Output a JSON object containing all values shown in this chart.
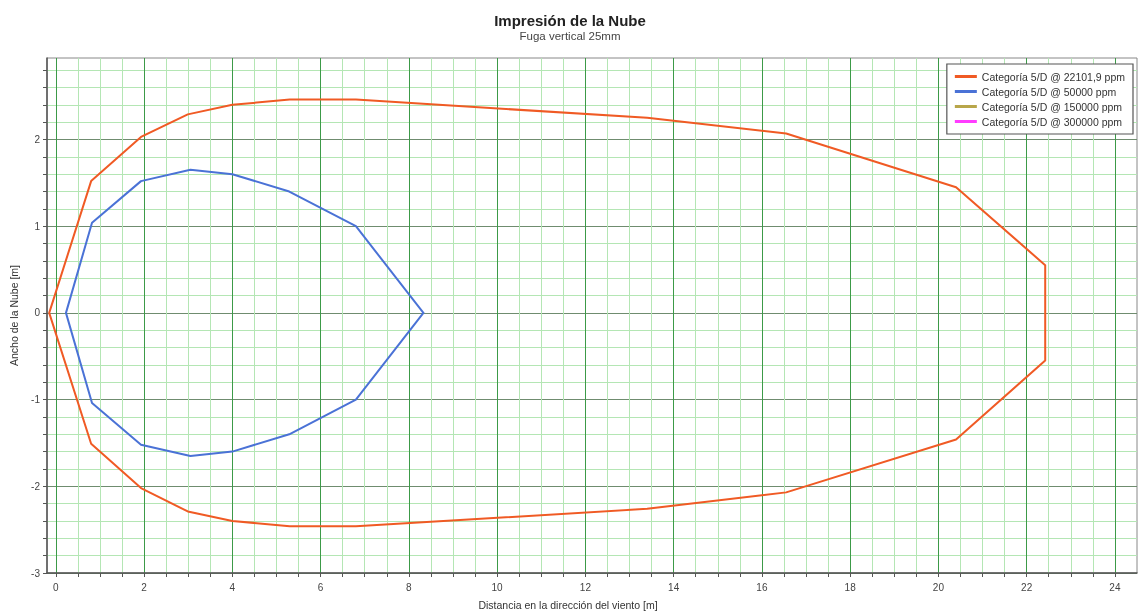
{
  "chart_data": {
    "type": "line",
    "title": "Impresión de la Nube",
    "subtitle": "Fuga vertical 25mm",
    "xlabel": "Distancia en la dirección del viento [m]",
    "ylabel": "Ancho de la Nube [m]",
    "xlim": [
      -0.2,
      24.5
    ],
    "ylim": [
      -3,
      2.94
    ],
    "xticks": [
      0,
      {
        "value": 0.5,
        "label": null
      },
      {
        "value": 1,
        "label": null
      },
      {
        "value": 1.5,
        "label": null
      },
      2,
      {
        "value": 2.5,
        "label": null
      },
      {
        "value": 3,
        "label": null
      },
      {
        "value": 3.5,
        "label": null
      },
      4,
      {
        "value": 4.5,
        "label": null
      },
      {
        "value": 5,
        "label": null
      },
      {
        "value": 5.5,
        "label": null
      },
      6,
      {
        "value": 6.5,
        "label": null
      },
      {
        "value": 7,
        "label": null
      },
      {
        "value": 7.5,
        "label": null
      },
      8,
      {
        "value": 8.5,
        "label": null
      },
      {
        "value": 9,
        "label": null
      },
      {
        "value": 9.5,
        "label": null
      },
      10,
      {
        "value": 10.5,
        "label": null
      },
      {
        "value": 11,
        "label": null
      },
      {
        "value": 11.5,
        "label": null
      },
      12,
      {
        "value": 12.5,
        "label": null
      },
      {
        "value": 13,
        "label": null
      },
      {
        "value": 13.5,
        "label": null
      },
      14,
      {
        "value": 14.5,
        "label": null
      },
      {
        "value": 15,
        "label": null
      },
      {
        "value": 15.5,
        "label": null
      },
      16,
      {
        "value": 16.5,
        "label": null
      },
      {
        "value": 17,
        "label": null
      },
      {
        "value": 17.5,
        "label": null
      },
      18,
      {
        "value": 18.5,
        "label": null
      },
      {
        "value": 19,
        "label": null
      },
      {
        "value": 19.5,
        "label": null
      },
      20,
      {
        "value": 20.5,
        "label": null
      },
      {
        "value": 21,
        "label": null
      },
      {
        "value": 21.5,
        "label": null
      },
      22,
      {
        "value": 22.5,
        "label": null
      },
      {
        "value": 23,
        "label": null
      },
      {
        "value": 23.5,
        "label": null
      },
      24
    ],
    "yticks": [
      -3,
      {
        "value": -2.8,
        "label": null
      },
      {
        "value": -2.6,
        "label": null
      },
      {
        "value": -2.4,
        "label": null
      },
      {
        "value": -2.2,
        "label": null
      },
      -2,
      {
        "value": -1.8,
        "label": null
      },
      {
        "value": -1.6,
        "label": null
      },
      {
        "value": -1.4,
        "label": null
      },
      {
        "value": -1.2,
        "label": null
      },
      -1,
      {
        "value": -0.8,
        "label": null
      },
      {
        "value": -0.6,
        "label": null
      },
      {
        "value": -0.4,
        "label": null
      },
      {
        "value": -0.2,
        "label": null
      },
      0,
      {
        "value": 0.2,
        "label": null
      },
      {
        "value": 0.4,
        "label": null
      },
      {
        "value": 0.6,
        "label": null
      },
      {
        "value": 0.8,
        "label": null
      },
      1,
      {
        "value": 1.2,
        "label": null
      },
      {
        "value": 1.4,
        "label": null
      },
      {
        "value": 1.6,
        "label": null
      },
      {
        "value": 1.8,
        "label": null
      },
      2,
      {
        "value": 2.2,
        "label": null
      },
      {
        "value": 2.4,
        "label": null
      },
      {
        "value": 2.6,
        "label": null
      },
      {
        "value": 2.8,
        "label": null
      }
    ],
    "grid": true,
    "legend": "top right",
    "marker": "none",
    "line_style": "solid",
    "series": [
      {
        "name": "Categoría 5/D @ 22101,9 ppm",
        "color": "#f05a24",
        "x": [
          -0.15,
          0.8,
          1.93,
          2.99,
          4.0,
          5.3,
          6.8,
          13.4,
          16.55,
          20.4,
          22.42,
          22.42,
          null,
          -0.15,
          0.8,
          1.93,
          2.99,
          4.0,
          5.3,
          6.8,
          13.4,
          16.55,
          20.4,
          22.42
        ],
        "values": [
          0,
          1.52,
          2.03,
          2.29,
          2.4,
          2.46,
          2.46,
          2.25,
          2.07,
          1.45,
          0.55,
          -0.55,
          null,
          0,
          -1.51,
          -2.02,
          -2.29,
          -2.4,
          -2.46,
          -2.46,
          -2.26,
          -2.07,
          -1.46,
          -0.55
        ]
      },
      {
        "name": "Categoría 5/D @ 50000 ppm",
        "color": "#4a72d6",
        "x": [
          0.23,
          0.82,
          1.93,
          3.05,
          4.0,
          5.29,
          6.8,
          8.33,
          null,
          0.23,
          0.82,
          1.93,
          3.05,
          4.0,
          5.29,
          6.8,
          8.33
        ],
        "values": [
          0,
          1.04,
          1.52,
          1.65,
          1.6,
          1.4,
          1.0,
          0,
          null,
          0,
          -1.04,
          -1.52,
          -1.65,
          -1.6,
          -1.4,
          -1.0,
          0
        ]
      },
      {
        "name": "Categoría 5/D @ 150000 ppm",
        "color": "#b8a64a"
      },
      {
        "name": "Categoría 5/D @ 300000 ppm",
        "color": "#ff3cff"
      }
    ]
  }
}
